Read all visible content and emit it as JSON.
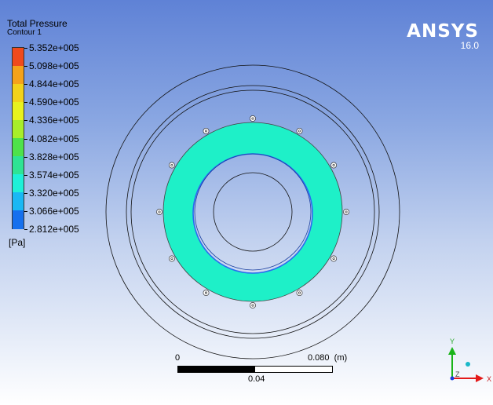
{
  "legend": {
    "title": "Total Pressure",
    "subtitle": "Contour 1",
    "unit": "[Pa]",
    "ticks": [
      "5.352e+005",
      "5.098e+005",
      "4.844e+005",
      "4.590e+005",
      "4.336e+005",
      "4.082e+005",
      "3.828e+005",
      "3.574e+005",
      "3.320e+005",
      "3.066e+005",
      "2.812e+005"
    ],
    "band_colors": [
      "#f04a1c",
      "#f5a21a",
      "#f2d21a",
      "#e8f21e",
      "#a8ee2a",
      "#4ee24a",
      "#2ee394",
      "#1ef0d8",
      "#1ab8f4",
      "#1670ee"
    ]
  },
  "branding": {
    "name": "ANSYS",
    "version": "16.0"
  },
  "contour": {
    "fill_color": "#1ef0c8",
    "inner_edge_color": "#2a6bf0"
  },
  "scale_bar": {
    "start": "0",
    "end": "0.080",
    "unit": "(m)",
    "mid": "0.04"
  },
  "triad": {
    "x_label": "X",
    "y_label": "Y",
    "z_label": "Z"
  }
}
